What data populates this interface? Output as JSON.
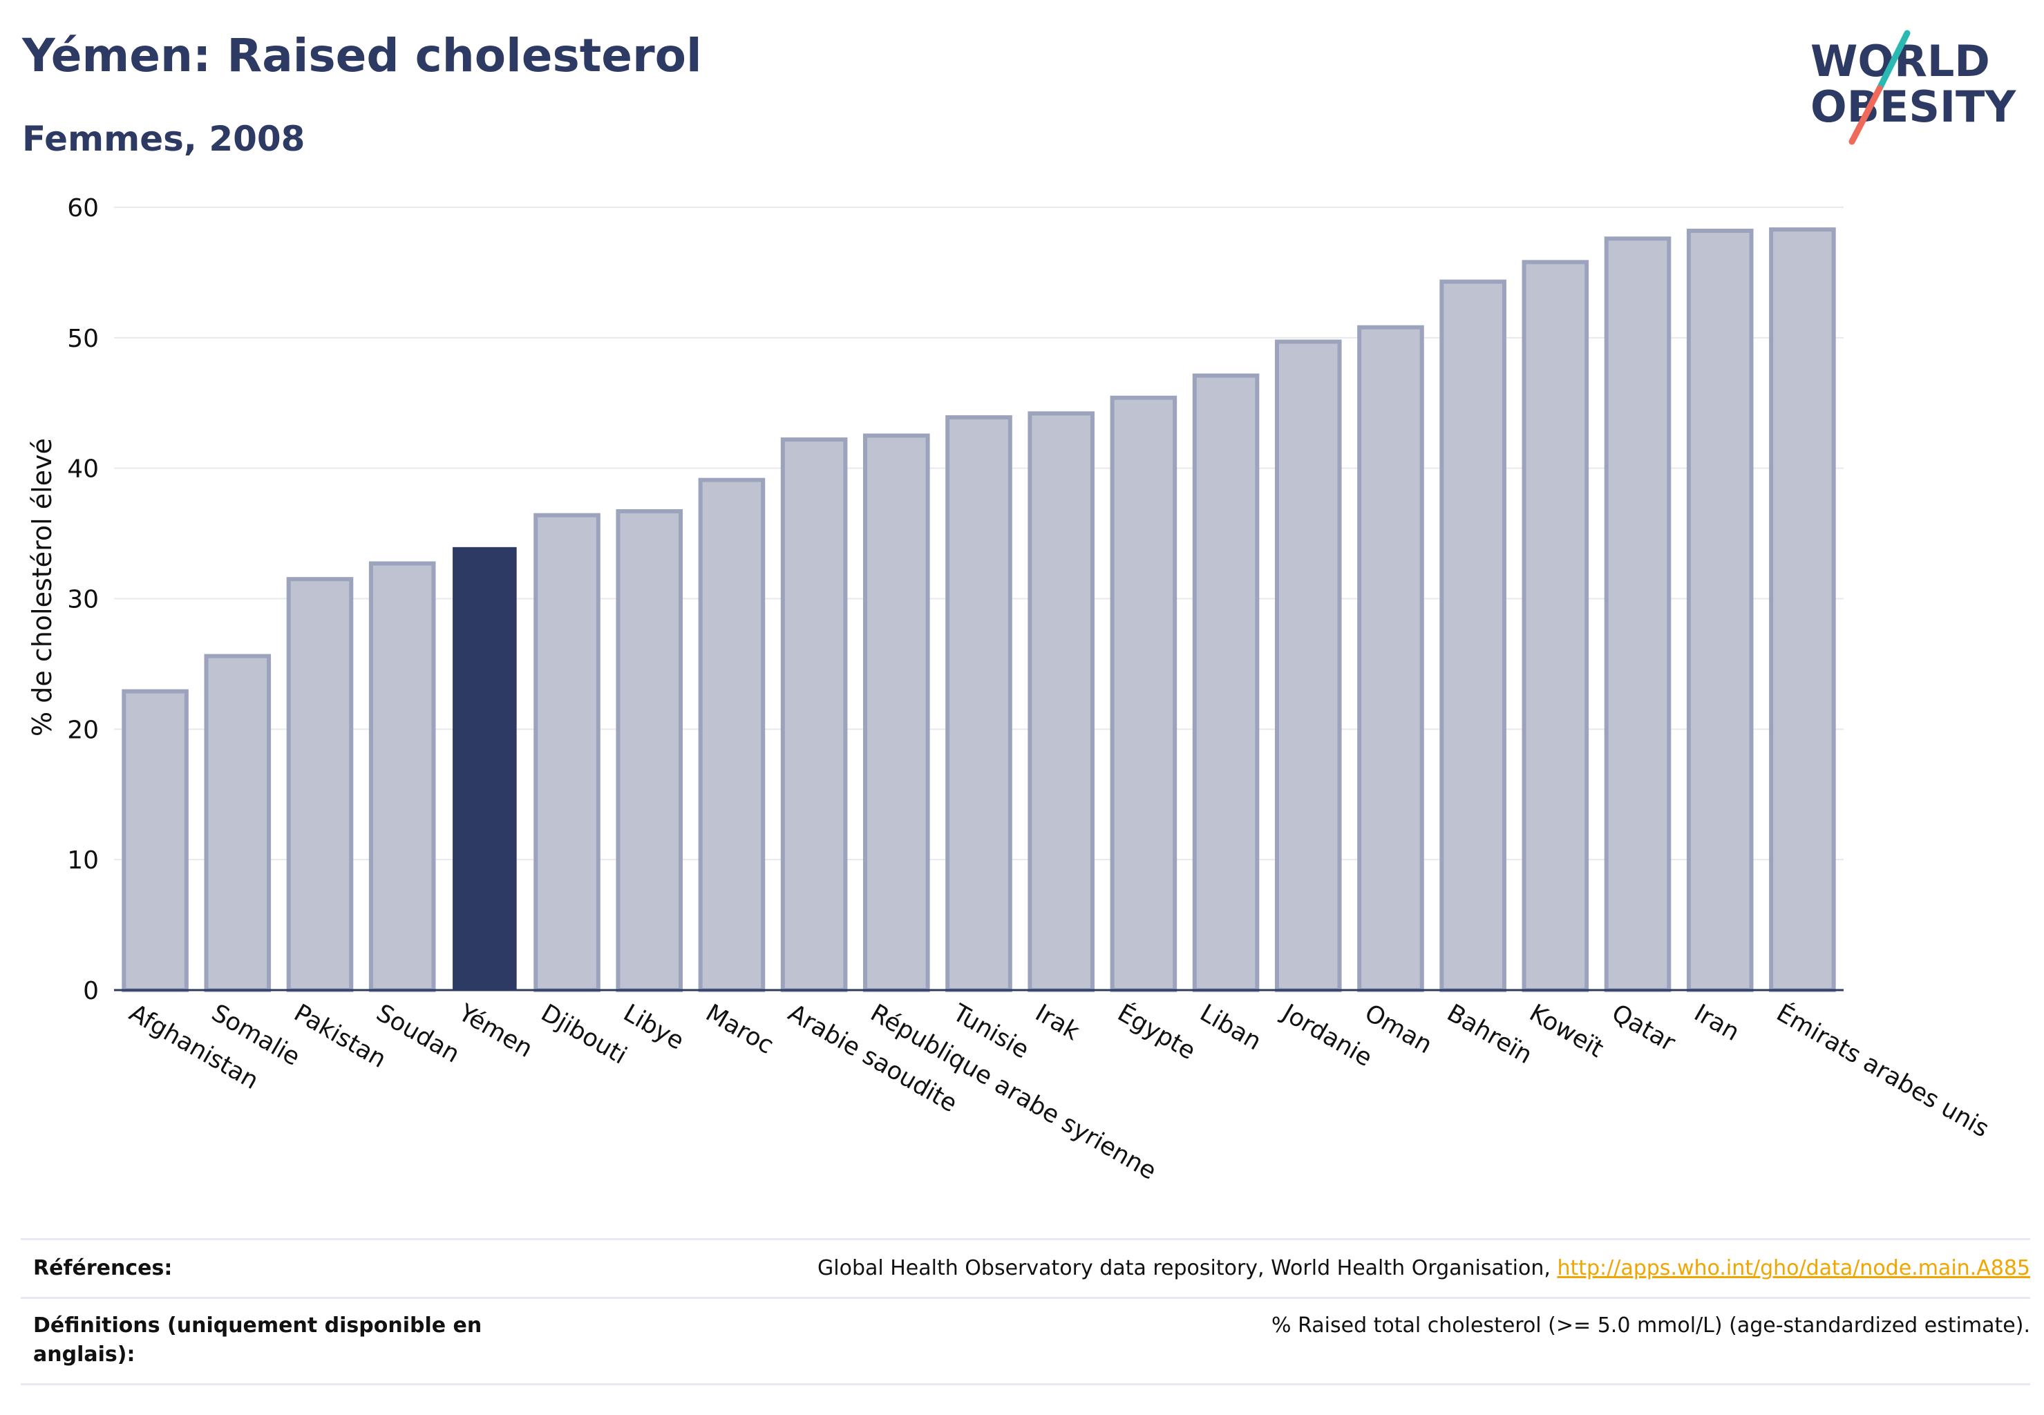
{
  "header": {
    "title": "Yémen: Raised cholesterol",
    "subtitle": "Femmes, 2008"
  },
  "logo": {
    "line1": "WORLD",
    "line2": "OBESITY"
  },
  "colors": {
    "highlight": "#2d3a63",
    "bar_fill": "#bfc2d0",
    "bar_stroke": "#9ca3bd",
    "grid": "#e8e9ef",
    "title": "#2d3a63",
    "link": "#f0a500"
  },
  "chart_data": {
    "type": "bar",
    "title": "Yémen: Raised cholesterol",
    "subtitle": "Femmes, 2008",
    "ylabel": "% de cholestérol élevé",
    "xlabel": "",
    "ylim": [
      0,
      60
    ],
    "yticks": [
      0,
      10,
      20,
      30,
      40,
      50,
      60
    ],
    "grid": true,
    "highlight": "Yémen",
    "categories": [
      "Afghanistan",
      "Somalie",
      "Pakistan",
      "Soudan",
      "Yémen",
      "Djibouti",
      "Libye",
      "Maroc",
      "Arabie saoudite",
      "République arabe syrienne",
      "Tunisie",
      "Irak",
      "Égypte",
      "Liban",
      "Jordanie",
      "Oman",
      "Bahreïn",
      "Koweït",
      "Qatar",
      "Iran",
      "Émirats arabes unis"
    ],
    "values": [
      22.9,
      25.6,
      31.5,
      32.7,
      33.9,
      36.4,
      36.7,
      39.1,
      42.2,
      42.5,
      43.9,
      44.2,
      45.4,
      47.1,
      49.7,
      50.8,
      54.3,
      55.8,
      57.6,
      58.2,
      58.3
    ]
  },
  "references": {
    "label": "Références:",
    "text": "Global Health Observatory data repository, World Health Organisation, ",
    "link": "http://apps.who.int/gho/data/node.main.A885"
  },
  "definitions": {
    "label": "Définitions (uniquement disponible en anglais):",
    "text": "% Raised total cholesterol (>= 5.0 mmol/L) (age-standardized estimate)."
  }
}
